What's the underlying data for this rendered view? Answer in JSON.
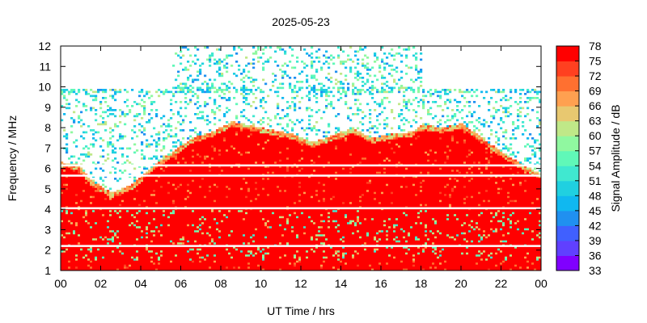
{
  "chart_data": {
    "type": "heatmap",
    "title": "2025-05-23",
    "xlabel": "UT Time / hrs",
    "ylabel": "Frequency / MHz",
    "colorbar_label": "Signal Amplitude / dB",
    "x_range": [
      0,
      24
    ],
    "y_range": [
      1,
      12
    ],
    "x_ticks": [
      "00",
      "02",
      "04",
      "06",
      "08",
      "10",
      "12",
      "14",
      "16",
      "18",
      "20",
      "22",
      "00"
    ],
    "y_ticks": [
      "1",
      "2",
      "3",
      "4",
      "5",
      "6",
      "7",
      "8",
      "9",
      "10",
      "11",
      "12"
    ],
    "colorbar_range": [
      33,
      78
    ],
    "colorbar_ticks": [
      "78",
      "75",
      "72",
      "69",
      "66",
      "63",
      "60",
      "57",
      "54",
      "51",
      "48",
      "45",
      "42",
      "39",
      "36",
      "33"
    ],
    "colorbar_colors": [
      "#8000ff",
      "#6040ff",
      "#4060ff",
      "#2090f0",
      "#10b8f0",
      "#20d0e0",
      "#40e8d0",
      "#60f8b8",
      "#90f8a0",
      "#c0e888",
      "#e8c870",
      "#ffa050",
      "#ff7030",
      "#ff4020",
      "#ff0000"
    ],
    "grid": false,
    "saturated_region_top_mhz": [
      {
        "t": 0.0,
        "f": 6.1
      },
      {
        "t": 0.8,
        "f": 6.0
      },
      {
        "t": 1.5,
        "f": 5.2
      },
      {
        "t": 2.5,
        "f": 4.6
      },
      {
        "t": 3.5,
        "f": 5.0
      },
      {
        "t": 4.5,
        "f": 5.9
      },
      {
        "t": 5.5,
        "f": 6.6
      },
      {
        "t": 6.5,
        "f": 7.3
      },
      {
        "t": 7.5,
        "f": 7.6
      },
      {
        "t": 8.5,
        "f": 8.1
      },
      {
        "t": 9.5,
        "f": 7.9
      },
      {
        "t": 10.5,
        "f": 7.7
      },
      {
        "t": 11.5,
        "f": 7.5
      },
      {
        "t": 12.5,
        "f": 7.1
      },
      {
        "t": 13.5,
        "f": 7.4
      },
      {
        "t": 14.5,
        "f": 7.8
      },
      {
        "t": 15.5,
        "f": 7.3
      },
      {
        "t": 16.5,
        "f": 7.5
      },
      {
        "t": 17.5,
        "f": 7.6
      },
      {
        "t": 18.0,
        "f": 8.0
      },
      {
        "t": 19.0,
        "f": 7.8
      },
      {
        "t": 20.0,
        "f": 8.0
      },
      {
        "t": 21.0,
        "f": 7.3
      },
      {
        "t": 22.0,
        "f": 6.6
      },
      {
        "t": 23.0,
        "f": 6.0
      },
      {
        "t": 24.0,
        "f": 5.5
      }
    ],
    "high_band_observation_hours": [
      5.5,
      18.0
    ],
    "white_gap_lines_mhz": [
      6.15,
      5.65,
      4.05,
      2.2
    ]
  }
}
